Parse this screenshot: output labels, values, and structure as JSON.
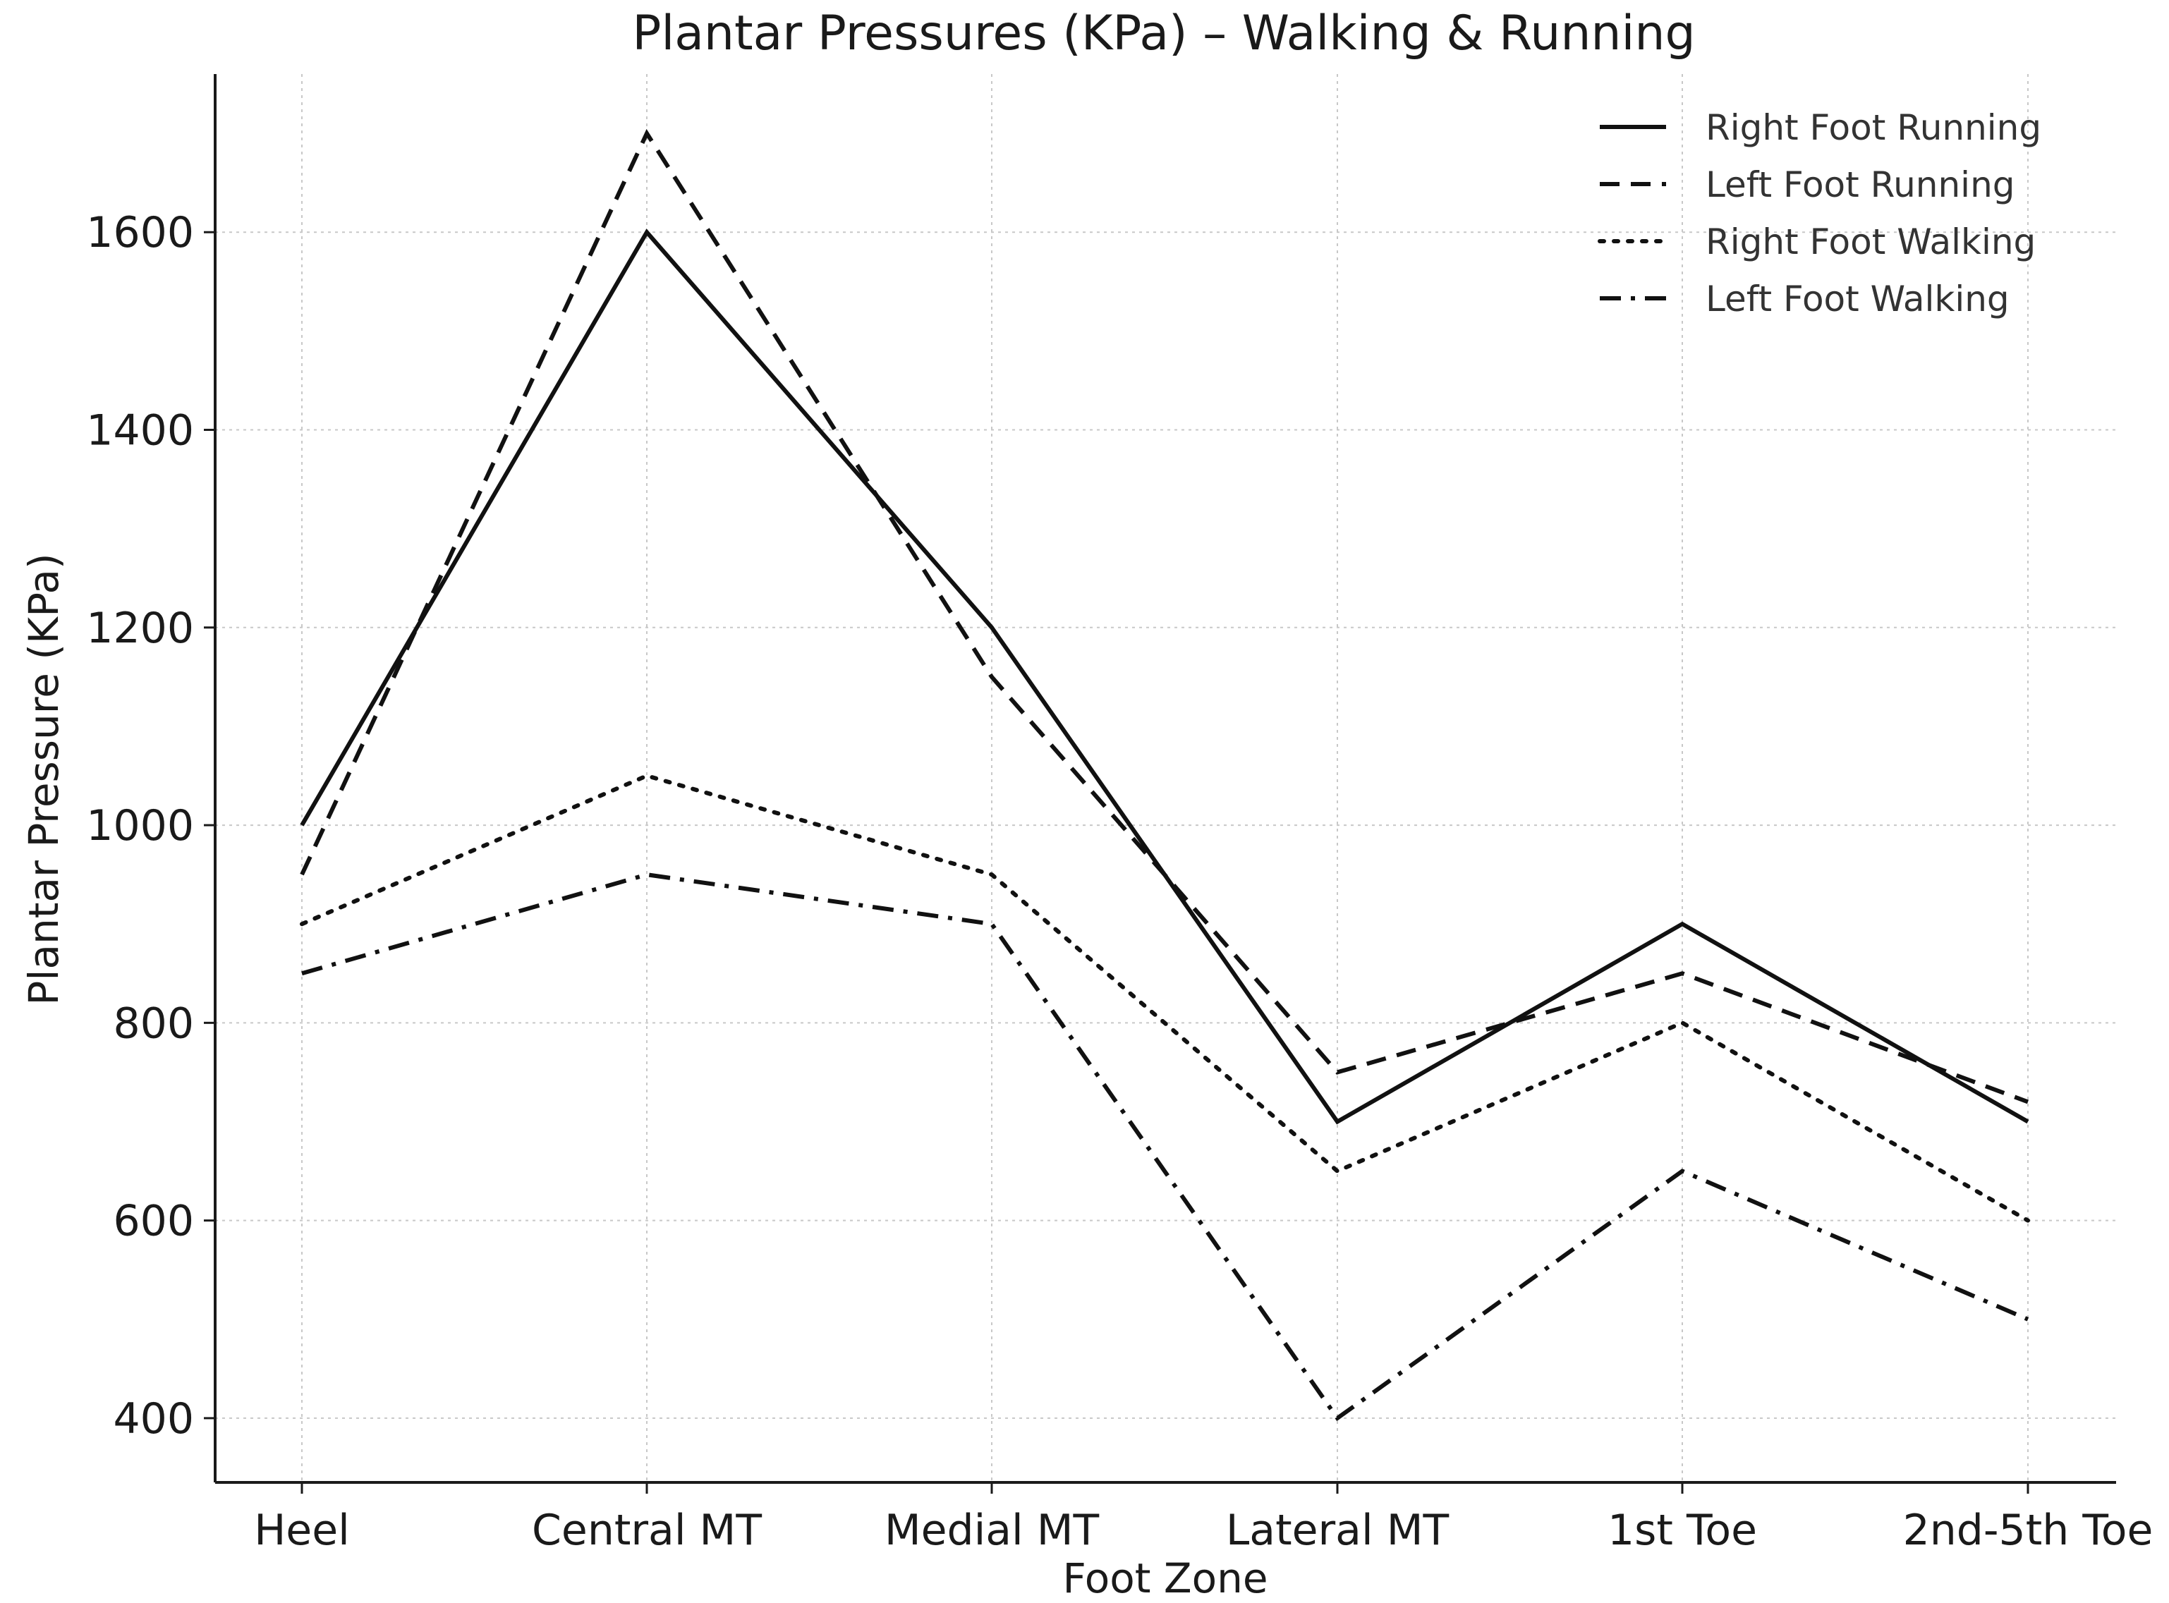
{
  "chart_data": {
    "type": "line",
    "title": "Plantar Pressures (KPa) – Walking & Running",
    "xlabel": "Foot Zone",
    "ylabel": "Plantar Pressure (KPa)",
    "categories": [
      "Heel",
      "Central MT",
      "Medial MT",
      "Lateral MT",
      "1st Toe",
      "2nd-5th Toe"
    ],
    "ylim": [
      335,
      1760
    ],
    "yticks": [
      400,
      600,
      800,
      1000,
      1200,
      1400,
      1600
    ],
    "grid": true,
    "legend_position": "top-right",
    "series": [
      {
        "name": "Right Foot Running",
        "style": "solid",
        "values": [
          1000,
          1600,
          1200,
          700,
          900,
          700
        ]
      },
      {
        "name": "Left Foot Running",
        "style": "dashed",
        "values": [
          950,
          1700,
          1150,
          750,
          850,
          720
        ]
      },
      {
        "name": "Right Foot Walking",
        "style": "dotted",
        "values": [
          900,
          1050,
          950,
          650,
          800,
          600
        ]
      },
      {
        "name": "Left Foot Walking",
        "style": "dashdot",
        "values": [
          850,
          950,
          900,
          400,
          650,
          500
        ]
      }
    ],
    "colors": {
      "line": "#111111",
      "grid": "#c8c8c8",
      "text": "#1a1a1a"
    }
  }
}
